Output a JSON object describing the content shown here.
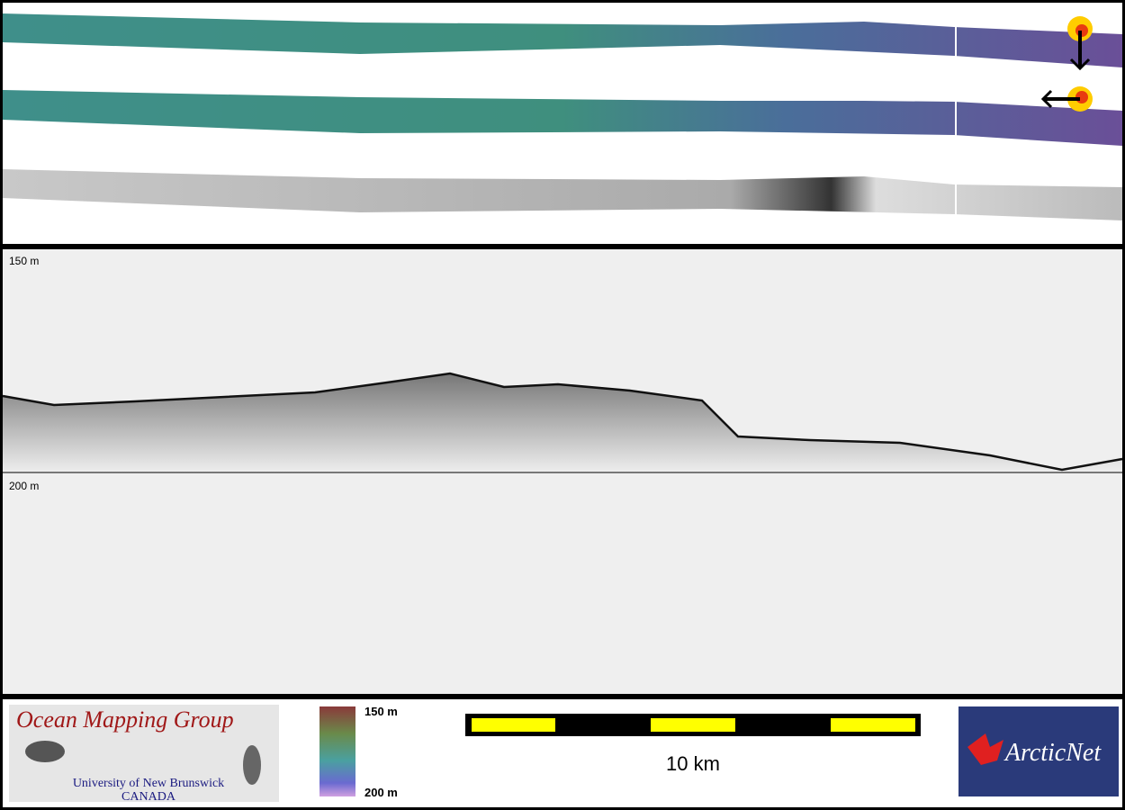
{
  "profile": {
    "top_depth": "150 m",
    "mid_depth": "200 m"
  },
  "legend": {
    "logo_title": "Ocean Mapping Group",
    "logo_university": "University of New Brunswick",
    "logo_country": "CANADA",
    "colorbar_top": "150 m",
    "colorbar_bottom": "200 m",
    "scale_bar": "10 km",
    "partner": "ArcticNet"
  }
}
